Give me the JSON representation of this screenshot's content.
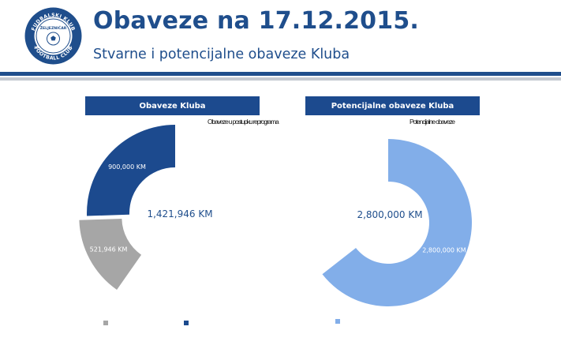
{
  "header": {
    "title": "Obaveze na 17.12.2015.",
    "subtitle": "Stvarne i potencijalne obaveze Kluba",
    "logo": {
      "text_top": "FUDBALSKI KLUB",
      "text_bottom": "FOOTBALL CLUB",
      "text_center": "ŽELJEZNIČAR",
      "year_left": "19",
      "year_right": "21",
      "colors": {
        "ring": "#1f4e8c",
        "inner": "#ffffff"
      }
    },
    "colors": {
      "title": "#1f4e8c",
      "rule_dark": "#1f4e8c",
      "rule_light": "#c4c9d1"
    }
  },
  "chart_data": [
    {
      "type": "pie",
      "variant": "donut",
      "title": "Obaveze Kluba",
      "legend_caption": "Obaveze u postupku reprograma",
      "series": [
        {
          "value": 521946,
          "label": "521,946 KM",
          "color": "#a6a6a6"
        },
        {
          "value": 900000,
          "label": "900,000 KM",
          "color": "#1c4a8e"
        }
      ],
      "center_label": "1,421,946 KM",
      "legend_placement": "bottom",
      "total": 1421946
    },
    {
      "type": "pie",
      "variant": "donut",
      "title": "Potencijalne obaveze Kluba",
      "legend_caption": "Potencijalne obaveze",
      "series": [
        {
          "value": 2800000,
          "label": "2,800,000 KM",
          "color": "#82aee9"
        }
      ],
      "center_label": "2,800,000 KM",
      "legend_placement": "bottom",
      "total": 2800000
    }
  ]
}
